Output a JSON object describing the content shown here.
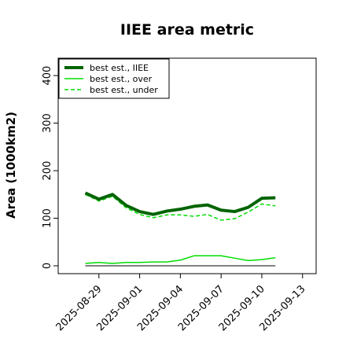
{
  "chart_data": {
    "type": "line",
    "title": "IIEE area metric",
    "xlabel": "",
    "ylabel": "Area (1000km2)",
    "ylim": [
      0,
      420
    ],
    "y_ticks": [
      0,
      100,
      200,
      300,
      400
    ],
    "x_ticks": [
      "2025-08-29",
      "2025-09-01",
      "2025-09-04",
      "2025-09-07",
      "2025-09-10",
      "2025-09-13"
    ],
    "xlim": [
      "2025-08-26",
      "2025-09-14"
    ],
    "x": [
      "2025-08-28",
      "2025-08-29",
      "2025-08-30",
      "2025-08-31",
      "2025-09-01",
      "2025-09-02",
      "2025-09-03",
      "2025-09-04",
      "2025-09-05",
      "2025-09-06",
      "2025-09-07",
      "2025-09-08",
      "2025-09-09",
      "2025-09-10",
      "2025-09-11"
    ],
    "series": [
      {
        "name": "best est., IIEE",
        "color": "#006400",
        "style": "solid-thick",
        "values": [
          153,
          140,
          150,
          127,
          114,
          108,
          115,
          119,
          125,
          128,
          117,
          114,
          123,
          142,
          143
        ]
      },
      {
        "name": "best est., over",
        "color": "#00dd00",
        "style": "solid",
        "values": [
          5,
          7,
          5,
          7,
          7,
          8,
          8,
          12,
          21,
          21,
          21,
          16,
          11,
          13,
          17
        ]
      },
      {
        "name": "best est., under",
        "color": "#00dd00",
        "style": "dashed",
        "values": [
          150,
          136,
          146,
          122,
          108,
          101,
          107,
          107,
          104,
          108,
          96,
          99,
          113,
          130,
          126
        ]
      },
      {
        "name": "",
        "color": "#000000",
        "style": "baseline",
        "values": [
          0,
          0,
          0,
          0,
          0,
          0,
          0,
          0,
          0,
          0,
          0,
          0,
          0,
          0,
          0
        ]
      }
    ],
    "legend_position": "top-left",
    "grid": false
  }
}
